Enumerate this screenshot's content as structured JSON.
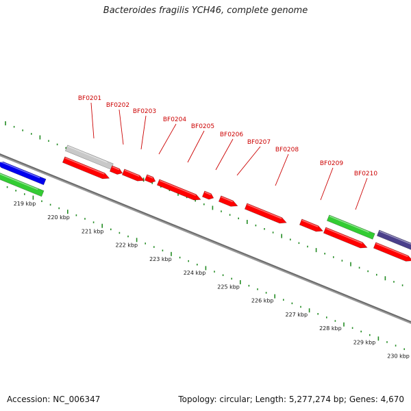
{
  "title": "Bacteroides fragilis YCH46, complete genome",
  "footer": {
    "accession": "Accession: NC_006347",
    "summary": "Topology: circular; Length: 5,277,274 bp; Genes: 4,670"
  },
  "colors": {
    "cds": "#ff0000",
    "gene_label": "#cc0000",
    "gray_feature": "#c8c8c8",
    "green_feature": "#33cc33",
    "blue_feature": "#0000ee",
    "slate_feature": "#4a3f8a",
    "gc_ticks": "#228b22",
    "backbone": "#666666"
  },
  "scale_labels": [
    "219 kbp",
    "220 kbp",
    "221 kbp",
    "222 kbp",
    "223 kbp",
    "224 kbp",
    "225 kbp",
    "226 kbp",
    "227 kbp",
    "228 kbp",
    "229 kbp",
    "230 kbp"
  ],
  "gene_labels": [
    "BF0201",
    "BF0202",
    "BF0203",
    "BF0204",
    "BF0205",
    "BF0206",
    "BF0207",
    "BF0208",
    "BF0209",
    "BF0210"
  ]
}
